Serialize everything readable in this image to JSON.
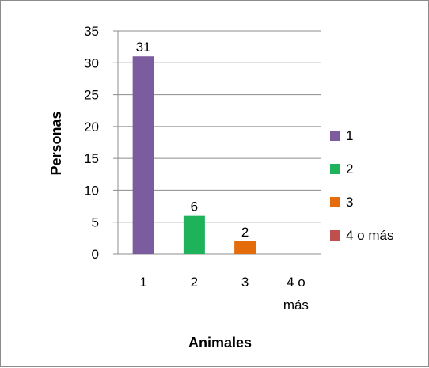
{
  "chart_data": {
    "type": "bar",
    "title": "",
    "xlabel": "Animales",
    "ylabel": "Personas",
    "categories": [
      "1",
      "2",
      "3",
      "4 o más"
    ],
    "series": [
      {
        "name": "1",
        "values": [
          31,
          null,
          null,
          null
        ],
        "color": "#7B5C9E"
      },
      {
        "name": "2",
        "values": [
          null,
          6,
          null,
          null
        ],
        "color": "#1EB35A"
      },
      {
        "name": "3",
        "values": [
          null,
          null,
          2,
          null
        ],
        "color": "#E46C0A"
      },
      {
        "name": "4 o más",
        "values": [
          null,
          null,
          null,
          0
        ],
        "color": "#C0504D"
      }
    ],
    "ylim": [
      0,
      35
    ],
    "yticks": [
      0,
      5,
      10,
      15,
      20,
      25,
      30,
      35
    ],
    "grid": true,
    "legend_position": "right"
  }
}
